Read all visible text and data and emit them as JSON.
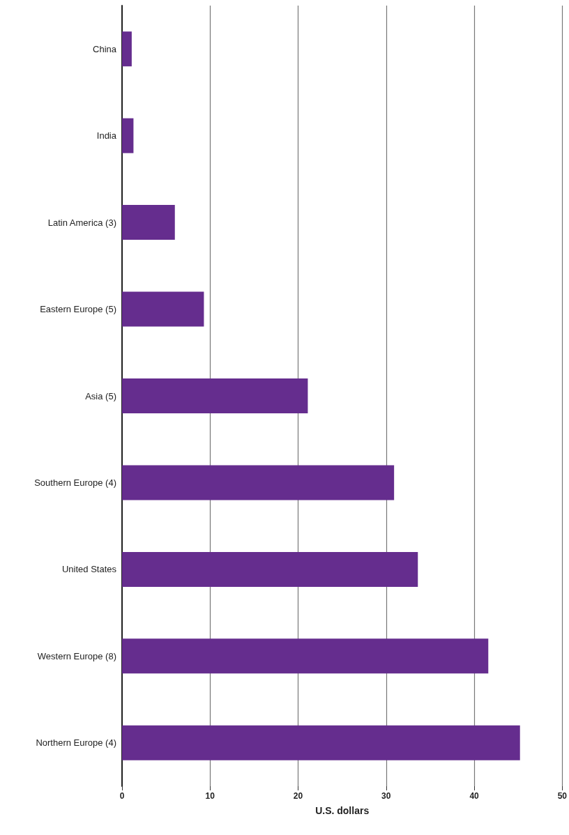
{
  "chart_data": {
    "type": "bar",
    "orientation": "horizontal",
    "xlabel": "U.S. dollars",
    "categories": [
      "China",
      "India",
      "Latin America (3)",
      "Eastern Europe (5)",
      "Asia (5)",
      "Southern Europe (4)",
      "United States",
      "Western Europe (8)",
      "Northern Europe (4)"
    ],
    "values": [
      1.1,
      1.3,
      6.0,
      9.3,
      21.1,
      30.9,
      33.6,
      41.6,
      45.2
    ],
    "color": "#652d8e",
    "xlim": [
      0,
      50
    ],
    "xticks": [
      0,
      10,
      20,
      30,
      40,
      50
    ],
    "grid": "x"
  }
}
